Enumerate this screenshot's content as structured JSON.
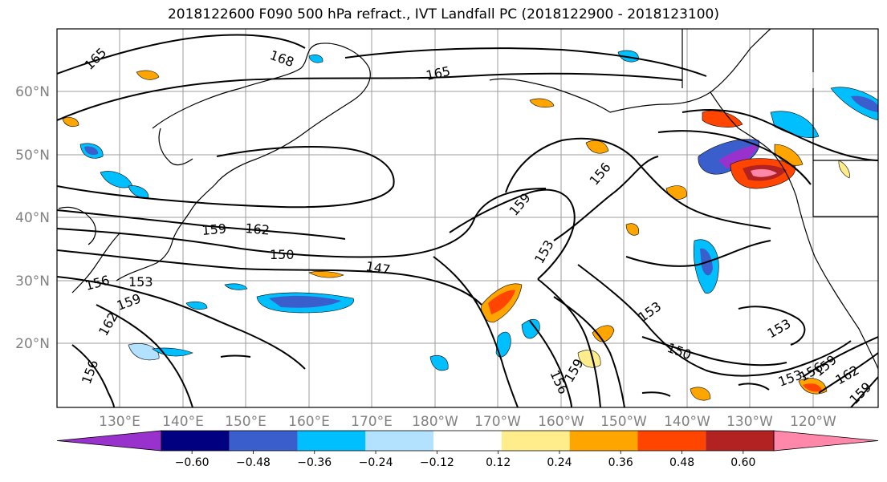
{
  "title": "2018122600 F090 500 hPa refract., IVT Landfall PC (2018122900 - 2018123100)",
  "lat_labels": [
    "60°N",
    "50°N",
    "40°N",
    "30°N",
    "20°N"
  ],
  "lon_labels": [
    "130°E",
    "140°E",
    "150°E",
    "160°E",
    "170°E",
    "180°W",
    "170°W",
    "160°W",
    "150°W",
    "140°W",
    "130°W",
    "120°W"
  ],
  "colorbar": {
    "colors": [
      "#9932cc",
      "#000080",
      "#3a5fcd",
      "#00bfff",
      "#b2e2ff",
      "#ffffff",
      "#ffec8b",
      "#ffa500",
      "#ff4500",
      "#b22222",
      "#ff88aa"
    ],
    "tick_labels": [
      "−0.60",
      "−0.48",
      "−0.36",
      "−0.24",
      "−0.12",
      "0.12",
      "0.24",
      "0.36",
      "0.48",
      "0.60"
    ]
  },
  "contour_labels": [
    "165",
    "168",
    "165",
    "159",
    "162",
    "150",
    "147",
    "156",
    "153",
    "159",
    "162",
    "156",
    "159",
    "156",
    "153",
    "153",
    "150",
    "156",
    "159",
    "153",
    "153",
    "156",
    "159",
    "162",
    "159"
  ]
}
